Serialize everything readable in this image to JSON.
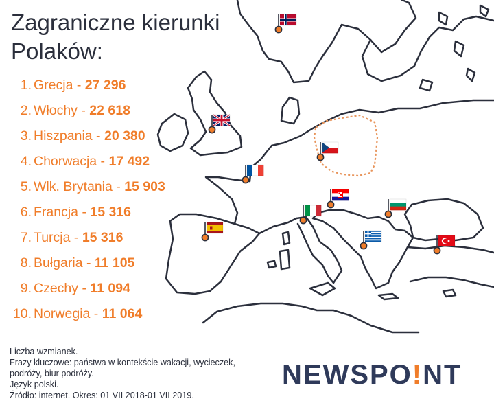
{
  "title": {
    "line1": "Zagraniczne kierunki",
    "line2": "Polaków:"
  },
  "chart_data": {
    "type": "table",
    "categories": [
      "Grecja",
      "Włochy",
      "Hiszpania",
      "Chorwacja",
      "Wlk. Brytania",
      "Francja",
      "Turcja",
      "Bułgaria",
      "Czechy",
      "Norwegia"
    ],
    "values": [
      27296,
      22618,
      20380,
      17492,
      15903,
      15316,
      15316,
      11105,
      11094,
      11064
    ],
    "rows": [
      {
        "rank": "1.",
        "name": "Grecja",
        "value": "27 296"
      },
      {
        "rank": "2.",
        "name": "Włochy",
        "value": "22 618"
      },
      {
        "rank": "3.",
        "name": "Hiszpania",
        "value": "20 380"
      },
      {
        "rank": "4.",
        "name": "Chorwacja",
        "value": "17 492"
      },
      {
        "rank": "5.",
        "name": "Wlk. Brytania",
        "value": "15 903"
      },
      {
        "rank": "6.",
        "name": "Francja",
        "value": "15 316"
      },
      {
        "rank": "7.",
        "name": "Turcja",
        "value": "15 316"
      },
      {
        "rank": "8.",
        "name": "Bułgaria",
        "value": "11 105"
      },
      {
        "rank": "9.",
        "name": "Czechy",
        "value": "11 094"
      },
      {
        "rank": "10.",
        "name": "Norwegia",
        "value": "11 064"
      }
    ]
  },
  "footnotes": [
    "Liczba wzmianek.",
    "Frazy kluczowe: państwa w kontekście wakacji, wycieczek,",
    "podróży, biur podróży.",
    "Język polski.",
    "Źródło: internet. Okres: 01 VII 2018-01 VII 2019."
  ],
  "logo": {
    "part1": "NEWSPO",
    "accent": "!",
    "part2": "NT"
  },
  "map": {
    "flag_icons": [
      "norway-flag-icon",
      "uk-flag-icon",
      "czech-flag-icon",
      "france-flag-icon",
      "croatia-flag-icon",
      "italy-flag-icon",
      "bulgaria-flag-icon",
      "spain-flag-icon",
      "greece-flag-icon",
      "turkey-flag-icon"
    ],
    "poland_outline": "dotted",
    "colors": {
      "accent": "#f07d2a",
      "text": "#2b2f3c",
      "logo": "#2f3a5a",
      "map_outline": "#2b2f3c",
      "poland_outline": "#e8955c",
      "pin": "#f07d2a"
    }
  }
}
